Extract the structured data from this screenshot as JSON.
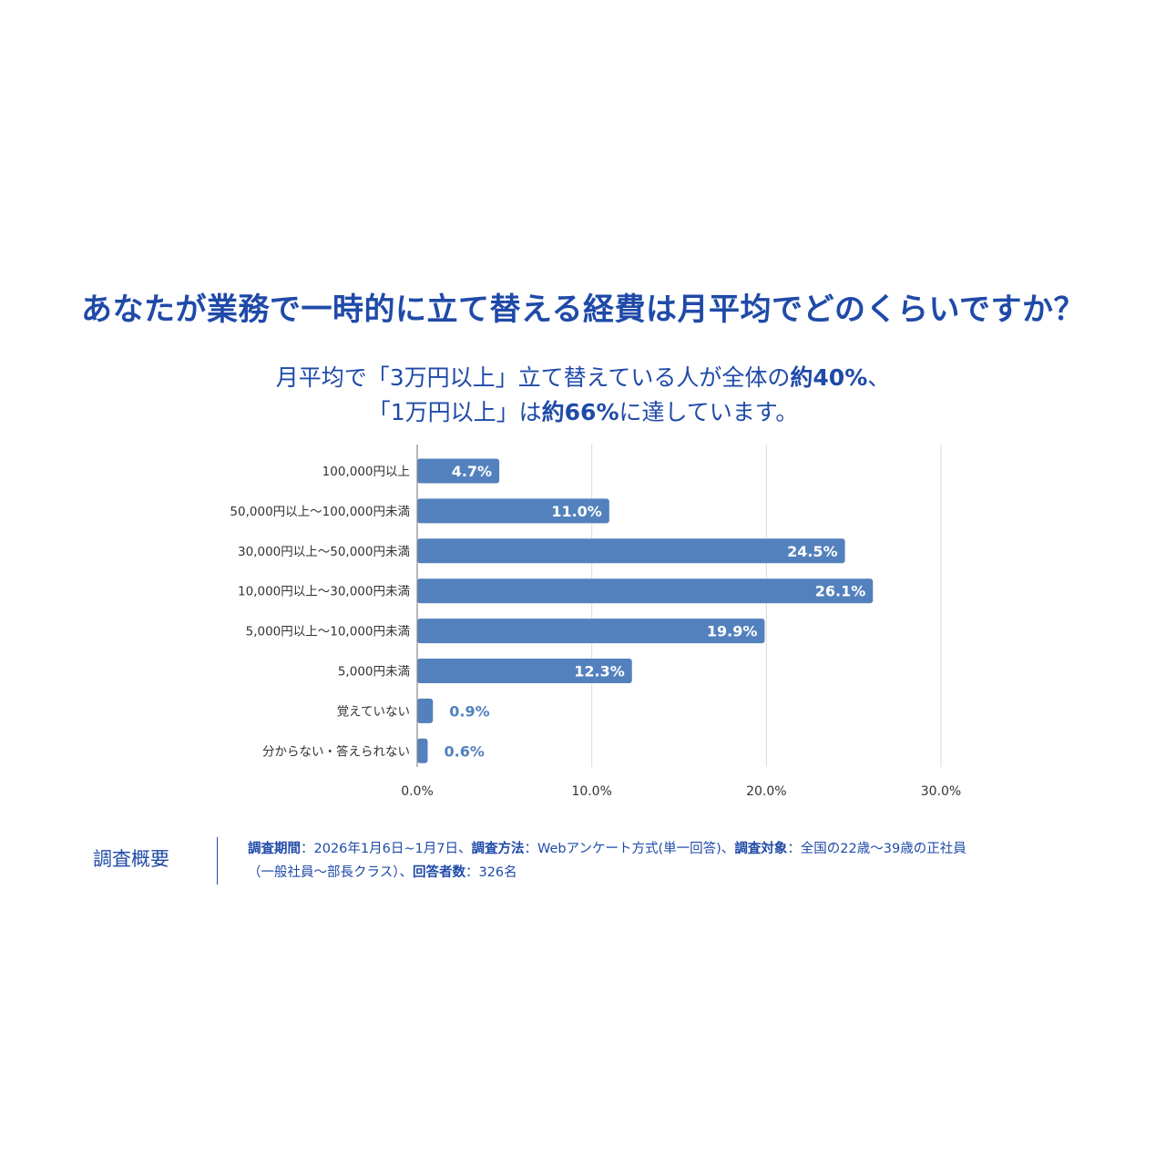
{
  "title": "あなたが業務で一時的に立て替える経費は月平均でどのくらいですか？",
  "subtitle": {
    "line1_pre": "月平均で「3万円以上」立て替えている人が全体の",
    "line1_bold": "約40%",
    "line1_post": "、",
    "line2_pre": "「1万円以上」は",
    "line2_bold": "約66%",
    "line2_post": "に達しています。"
  },
  "chart_data": {
    "type": "bar",
    "orientation": "horizontal",
    "categories": [
      "100,000円以上",
      "50,000円以上〜100,000円未満",
      "30,000円以上〜50,000円未満",
      "10,000円以上〜30,000円未満",
      "5,000円以上〜10,000円未満",
      "5,000円未満",
      "覚えていない",
      "分からない・答えられない"
    ],
    "values": [
      4.7,
      11.0,
      24.5,
      26.1,
      19.9,
      12.3,
      0.9,
      0.6
    ],
    "value_labels": [
      "4.7%",
      "11.0%",
      "24.5%",
      "26.1%",
      "19.9%",
      "12.3%",
      "0.9%",
      "0.6%"
    ],
    "xlim": [
      0,
      30
    ],
    "xticks": [
      0,
      10,
      20,
      30
    ],
    "xtick_labels": [
      "0.0%",
      "10.0%",
      "20.0%",
      "30.0%"
    ],
    "grid": true,
    "bar_color": "#5381be",
    "label_inside_color": "#ffffff",
    "label_outside_color": "#5381be"
  },
  "survey": {
    "label": "調査概要",
    "period_label": "調査期間",
    "period_value": "：2026年1月6日~1月7日、",
    "method_label": "調査方法",
    "method_value": "：Webアンケート方式(単一回答)、",
    "target_label": "調査対象",
    "target_value_line1": "：全国の22歳〜39歳の正社員",
    "target_value_line2": "（一般社員〜部長クラス）、",
    "count_label": "回答者数",
    "count_value": "：326名"
  },
  "colors": {
    "accent": "#1f4aa8",
    "bar": "#5381be",
    "grid": "#d9d9d9",
    "axis": "#888888",
    "text": "#333333"
  }
}
